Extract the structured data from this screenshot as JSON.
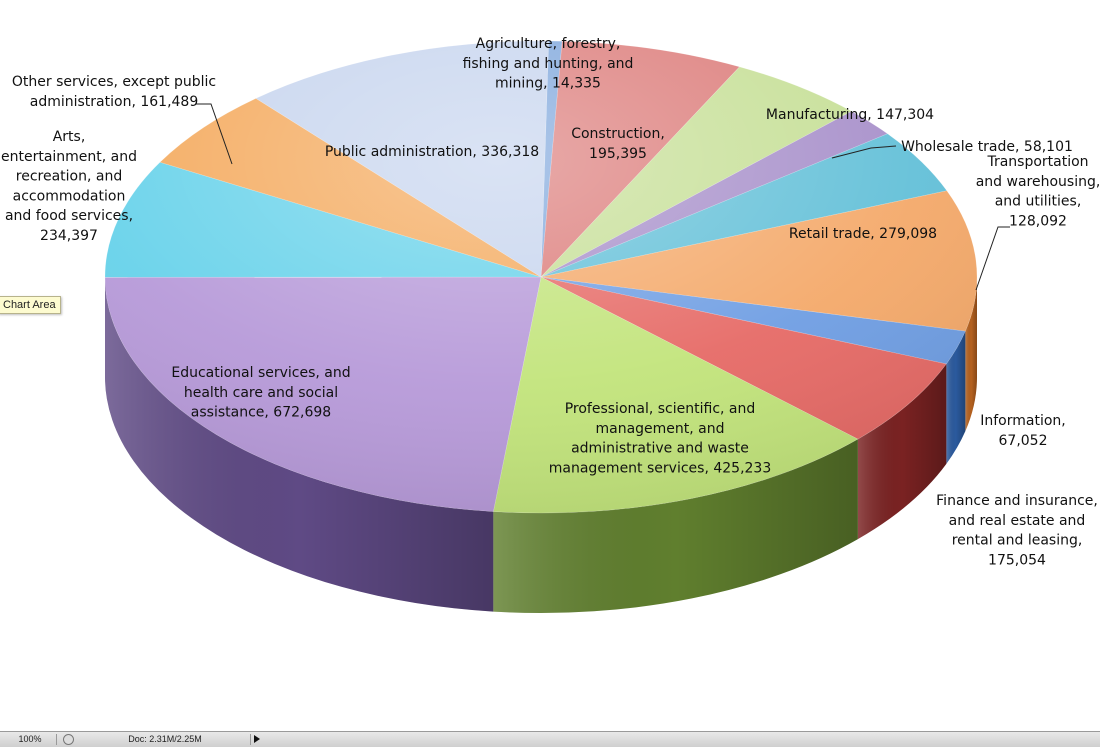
{
  "chart_data": {
    "type": "pie",
    "title": "",
    "slices": [
      {
        "label": "Agriculture, forestry, fishing and hunting, and mining",
        "value": 14335,
        "color": "#7fa7dc",
        "dark": "#3f6494"
      },
      {
        "label": "Construction",
        "value": 195395,
        "color": "#dc7c7a",
        "dark": "#8e3533"
      },
      {
        "label": "Manufacturing",
        "value": 147304,
        "color": "#c6df96",
        "dark": "#6a8a36"
      },
      {
        "label": "Wholesale trade",
        "value": 58101,
        "color": "#a78fca",
        "dark": "#5b4582"
      },
      {
        "label": "Transportation and warehousing, and utilities",
        "value": 128092,
        "color": "#63c0d8",
        "dark": "#2a7f96"
      },
      {
        "label": "Retail trade",
        "value": 279098,
        "color": "#f4a96a",
        "dark": "#b5611f"
      },
      {
        "label": "Information",
        "value": 67052,
        "color": "#6f9ee3",
        "dark": "#2b5a9e"
      },
      {
        "label": "Finance and insurance, and real estate and rental and leasing",
        "value": 175054,
        "color": "#e66a66",
        "dark": "#7a2222"
      },
      {
        "label": "Professional, scientific, and management, and administrative and waste management services",
        "value": 425233,
        "color": "#c2e47b",
        "dark": "#607f2e"
      },
      {
        "label": "Educational services, and health care and social assistance",
        "value": 672698,
        "color": "#b79ad9",
        "dark": "#5f4a85"
      },
      {
        "label": "Arts, entertainment, and recreation, and accommodation and food services",
        "value": 234397,
        "color": "#67d2ea",
        "dark": "#2b8aa0"
      },
      {
        "label": "Other services, except public administration",
        "value": 161489,
        "color": "#f4a95c",
        "dark": "#b0621c"
      },
      {
        "label": "Public administration",
        "value": 336318,
        "color": "#c6d4ee",
        "dark": "#7f8fb0"
      }
    ],
    "labels": [
      {
        "lines": [
          "Agriculture, forestry,",
          "fishing and hunting, and",
          "mining, 14,335"
        ]
      },
      {
        "lines": [
          "Construction,",
          "195,395"
        ]
      },
      {
        "lines": [
          "Manufacturing, 147,304"
        ]
      },
      {
        "lines": [
          "Wholesale trade, 58,101"
        ]
      },
      {
        "lines": [
          "Transportation",
          "and warehousing,",
          "and utilities,",
          "128,092"
        ]
      },
      {
        "lines": [
          "Retail trade, 279,098"
        ]
      },
      {
        "lines": [
          "Information,",
          "67,052"
        ]
      },
      {
        "lines": [
          "Finance and insurance,",
          "and real estate and",
          "rental and leasing,",
          "175,054"
        ]
      },
      {
        "lines": [
          "Professional, scientific, and",
          "management, and",
          "administrative and waste",
          "management services, 425,233"
        ]
      },
      {
        "lines": [
          "Educational services, and",
          "health care and social",
          "assistance, 672,698"
        ]
      },
      {
        "lines": [
          "Arts,",
          "entertainment, and",
          "recreation, and",
          "accommodation",
          "and food services,",
          "234,397"
        ]
      },
      {
        "lines": [
          "Other services, except public",
          "administration, 161,489"
        ]
      },
      {
        "lines": [
          "Public administration, 336,318"
        ]
      }
    ],
    "legend": "none"
  },
  "tooltip": {
    "text": "Chart Area"
  },
  "statusbar": {
    "zoom": "100%",
    "doc": "Doc: 2.31M/2.25M"
  }
}
